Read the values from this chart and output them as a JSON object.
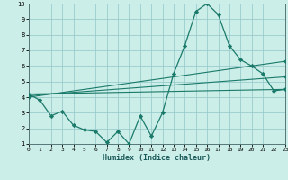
{
  "xlabel": "Humidex (Indice chaleur)",
  "xlim": [
    0,
    23
  ],
  "ylim": [
    1,
    10
  ],
  "xticks": [
    0,
    1,
    2,
    3,
    4,
    5,
    6,
    7,
    8,
    9,
    10,
    11,
    12,
    13,
    14,
    15,
    16,
    17,
    18,
    19,
    20,
    21,
    22,
    23
  ],
  "yticks": [
    1,
    2,
    3,
    4,
    5,
    6,
    7,
    8,
    9,
    10
  ],
  "bg_color": "#cceee8",
  "grid_color": "#99cccc",
  "line_color": "#1a7a6a",
  "main_line": {
    "x": [
      0,
      1,
      2,
      3,
      4,
      5,
      6,
      7,
      8,
      9,
      10,
      11,
      12,
      13,
      14,
      15,
      16,
      17,
      18,
      19,
      20,
      21,
      22,
      23
    ],
    "y": [
      4.2,
      3.8,
      2.8,
      3.1,
      2.2,
      1.9,
      1.8,
      1.1,
      1.8,
      1.0,
      2.8,
      1.5,
      3.0,
      5.5,
      7.3,
      9.5,
      10.0,
      9.3,
      7.3,
      6.4,
      6.0,
      5.5,
      4.4,
      4.5
    ]
  },
  "trend_lines": [
    {
      "x": [
        0,
        23
      ],
      "y": [
        4.2,
        4.5
      ]
    },
    {
      "x": [
        0,
        23
      ],
      "y": [
        4.1,
        5.3
      ]
    },
    {
      "x": [
        0,
        23
      ],
      "y": [
        4.0,
        6.3
      ]
    }
  ]
}
